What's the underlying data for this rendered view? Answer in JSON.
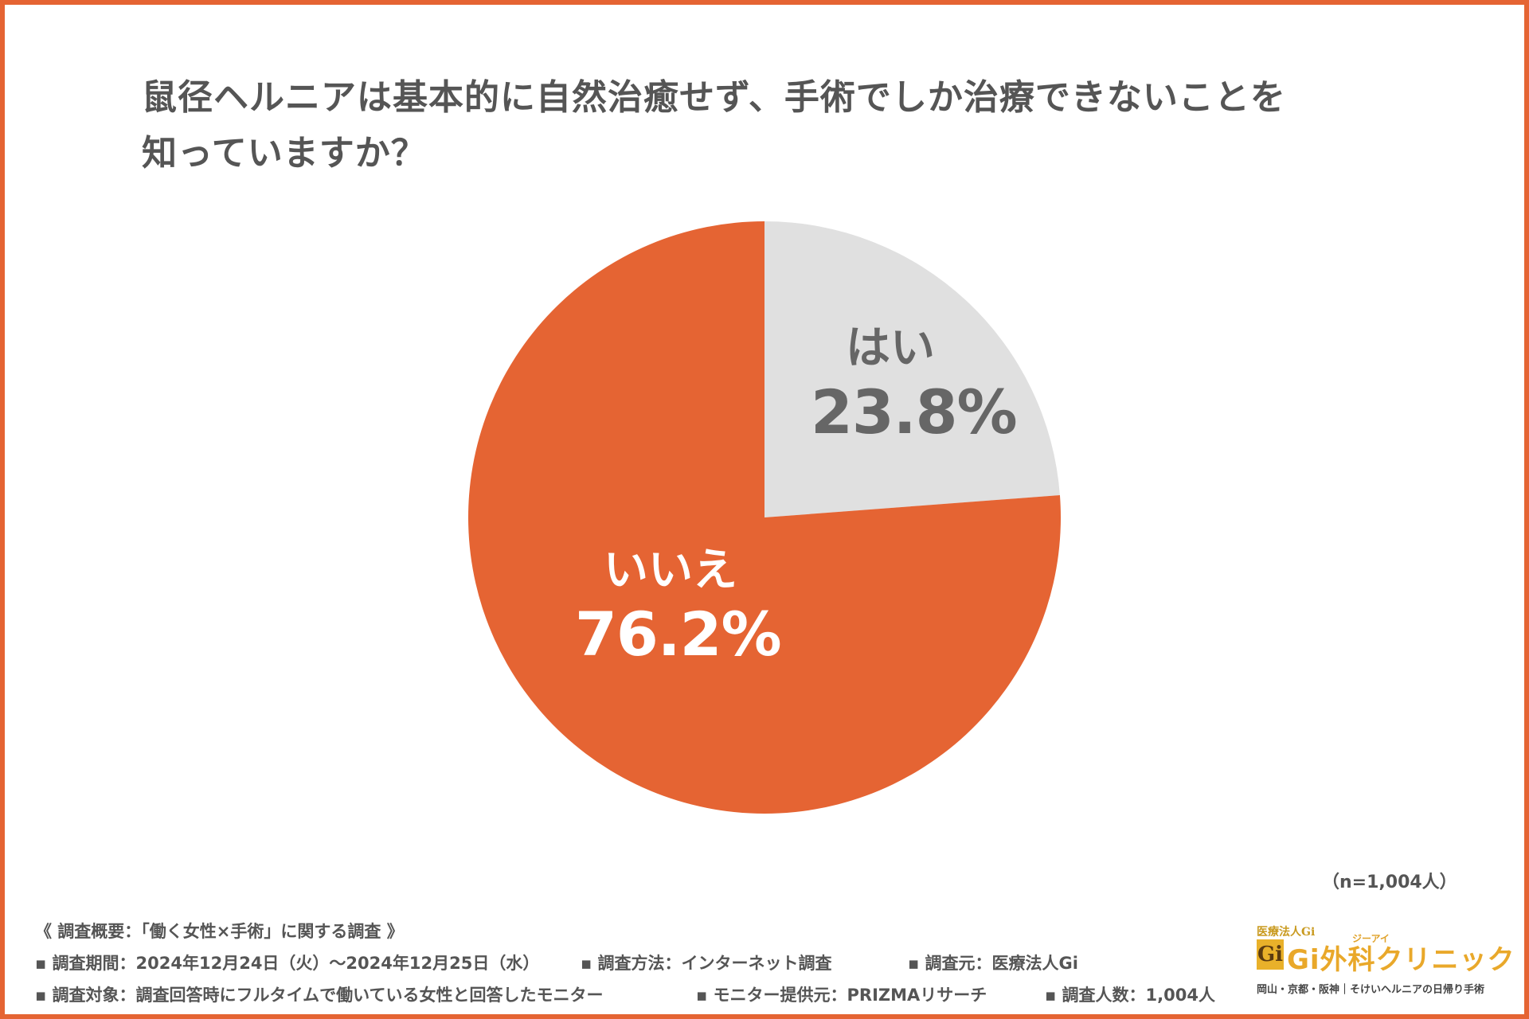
{
  "chart_data": {
    "type": "pie",
    "title": "鼠径ヘルニアは基本的に自然治癒せず、手術でしか治療できないことを知っていますか？",
    "title_lines": [
      "鼠径ヘルニアは基本的に自然治癒せず、手術でしか治療できないことを",
      "知っていますか？"
    ],
    "slices": [
      {
        "label": "はい",
        "value": 23.8,
        "display": "23.8%",
        "color": "#e0e0e0",
        "text_color": "#666666"
      },
      {
        "label": "いいえ",
        "value": 76.2,
        "display": "76.2%",
        "color": "#e56433",
        "text_color": "#ffffff"
      }
    ],
    "start_angle_deg": 0,
    "direction": "clockwise",
    "legend": "none"
  },
  "sample_size": "（n=1,004人）",
  "survey": {
    "heading": "《 調査概要：「働く女性×手術」に関する調査 》",
    "period": "▪ 調査期間：2024年12月24日（火）〜2024年12月25日（水）",
    "method": "▪ 調査方法：インターネット調査",
    "source": "▪ 調査元：医療法人Gi",
    "target": "▪ 調査対象：調査回答時にフルタイムで働いている女性と回答したモニター",
    "provider": "▪ モニター提供元：PRIZMAリサーチ",
    "count": "▪ 調査人数：1,004人"
  },
  "logo": {
    "corp": "医療法人Gi",
    "mark": "Gi",
    "ruby": "ジーアイ",
    "name": "Gi外科クリニック",
    "sub": "岡山・京都・阪神｜そけいヘルニアの日帰り手術",
    "color": "#e9a82a"
  },
  "colors": {
    "frame": "#e56433",
    "text": "#555555"
  }
}
